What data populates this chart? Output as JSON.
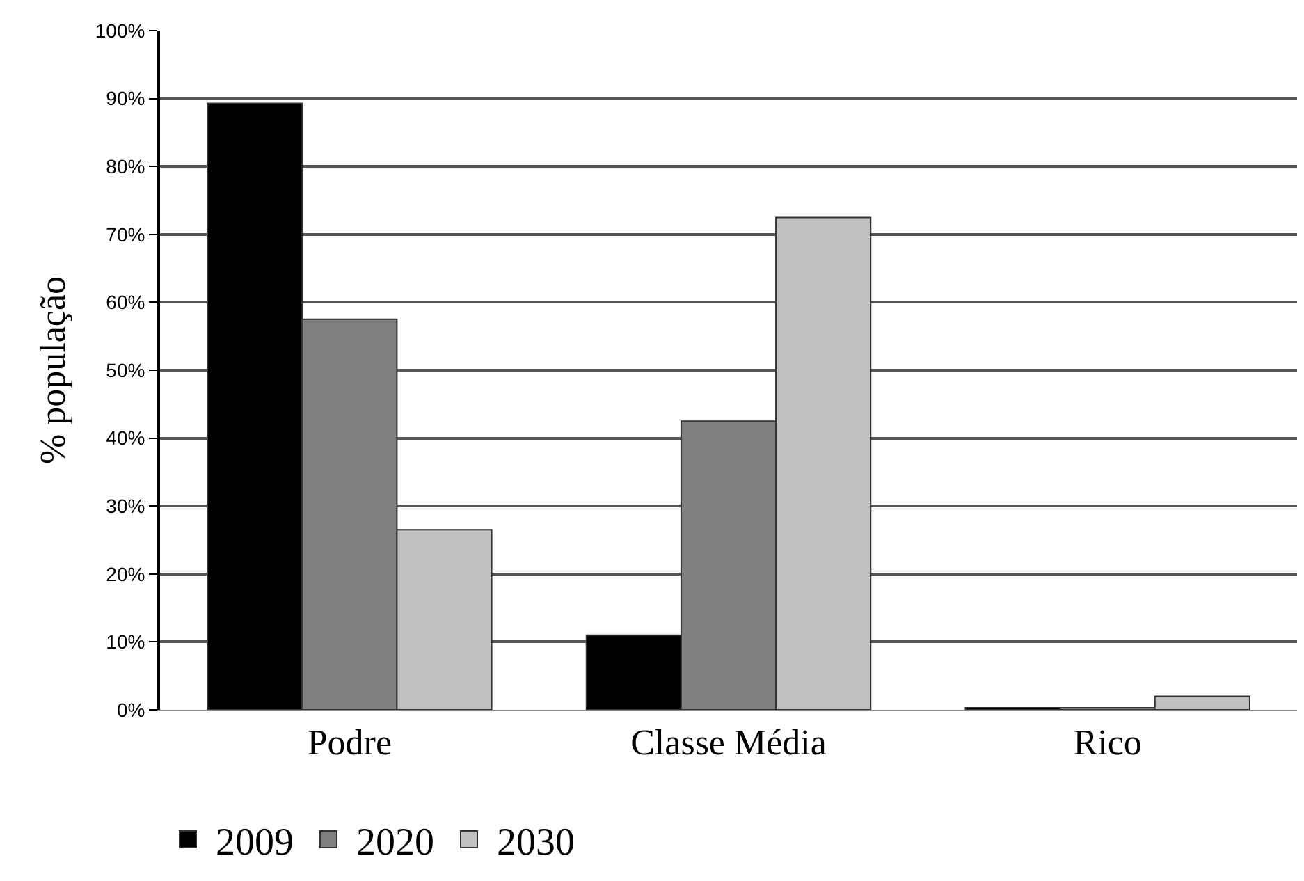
{
  "chart_data": {
    "type": "bar",
    "ylabel": "% população",
    "categories": [
      "Podre",
      "Classe Média",
      "Rico"
    ],
    "series": [
      {
        "name": "2009",
        "color": "#000000",
        "values": [
          89.3,
          11,
          0.3
        ]
      },
      {
        "name": "2020",
        "color": "#808080",
        "values": [
          57.5,
          42.5,
          0.3
        ]
      },
      {
        "name": "2030",
        "color": "#c0c0c0",
        "values": [
          26.5,
          72.5,
          2
        ]
      }
    ],
    "ylim": [
      0,
      100
    ],
    "yticks": [
      {
        "value": 0,
        "label": "0%"
      },
      {
        "value": 10,
        "label": "10%"
      },
      {
        "value": 20,
        "label": "20%"
      },
      {
        "value": 30,
        "label": "30%"
      },
      {
        "value": 40,
        "label": "40%"
      },
      {
        "value": 50,
        "label": "50%"
      },
      {
        "value": 60,
        "label": "60%"
      },
      {
        "value": 70,
        "label": "70%"
      },
      {
        "value": 80,
        "label": "80%"
      },
      {
        "value": 90,
        "label": "90%"
      },
      {
        "value": 100,
        "label": "100%"
      }
    ],
    "grid": "y",
    "legend": "bottom left"
  }
}
